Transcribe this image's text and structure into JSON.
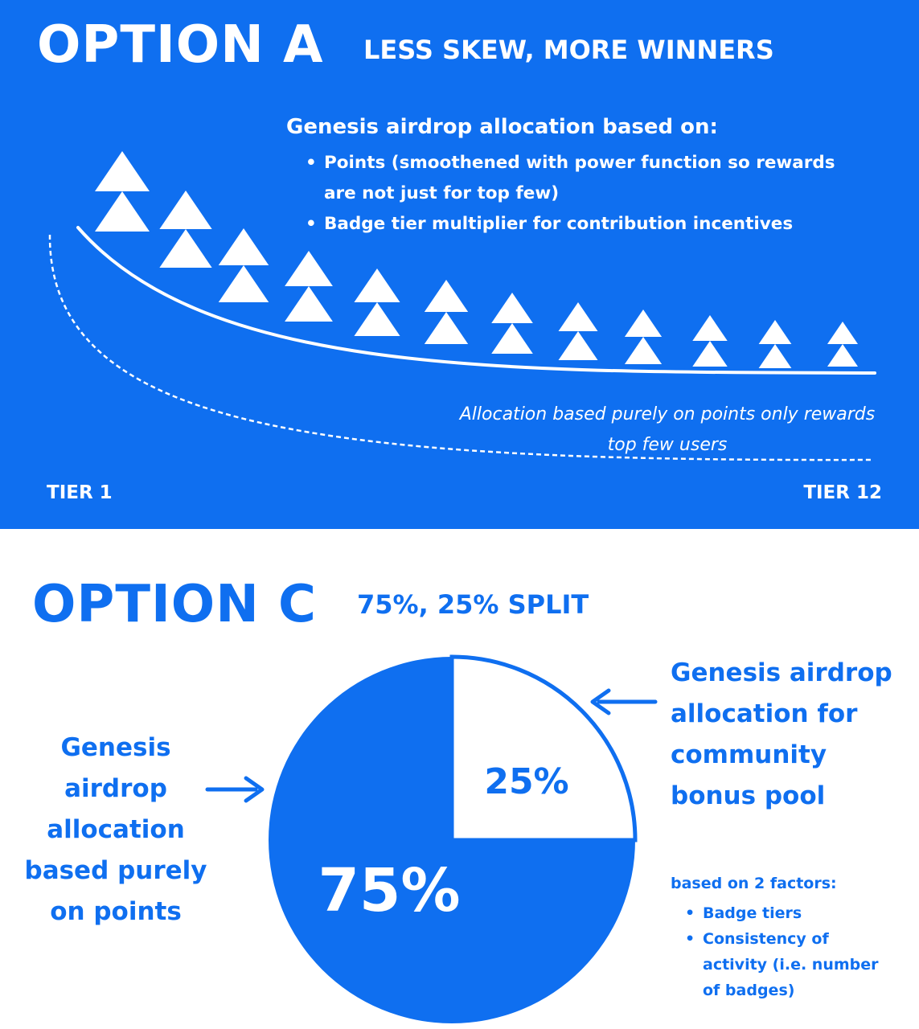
{
  "colors": {
    "brand_blue": "#0f6ff0",
    "white": "#ffffff"
  },
  "option_a": {
    "title": "OPTION A",
    "subtitle": "LESS SKEW, MORE WINNERS",
    "description_heading": "Genesis airdrop allocation based on:",
    "description_items": [
      "Points (smoothened with power function so rewards are not just for top few)",
      "Badge tier multiplier for contribution incentives"
    ],
    "dashed_curve_note": "Allocation based purely on points only rewards top few users",
    "tier_start_label": "TIER 1",
    "tier_end_label": "TIER 12",
    "tier_count": 12,
    "marker_icon": "double-triangle-icon"
  },
  "option_c": {
    "title": "OPTION C",
    "subtitle": "75%, 25% SPLIT",
    "left_label": "Genesis airdrop allocation based purely on points",
    "right_label": "Genesis airdrop allocation for community bonus pool",
    "factors_heading": "based on 2 factors:",
    "factors": [
      "Badge tiers",
      "Consistency of activity (i.e. number of badges)"
    ]
  },
  "chart_data": {
    "type": "pie",
    "slices": [
      {
        "label": "75%",
        "value": 75
      },
      {
        "label": "25%",
        "value": 25
      }
    ]
  }
}
